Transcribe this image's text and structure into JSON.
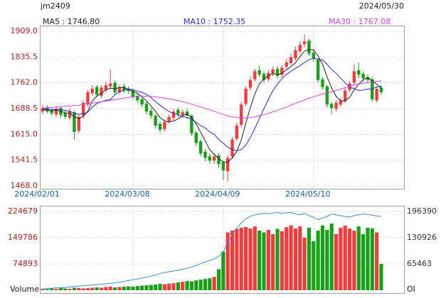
{
  "chart_data": [
    {
      "type": "candlestick",
      "title": "jm2409",
      "date": "2024/05/30",
      "categories": [
        "2024/02/01",
        null,
        null,
        null,
        null,
        null,
        null,
        null,
        null,
        null,
        null,
        null,
        null,
        null,
        null,
        null,
        null,
        null,
        null,
        null,
        "2024/03/08",
        null,
        null,
        null,
        null,
        null,
        null,
        null,
        null,
        null,
        null,
        null,
        null,
        null,
        null,
        null,
        null,
        null,
        null,
        null,
        "2024/04/09",
        null,
        null,
        null,
        null,
        null,
        null,
        null,
        null,
        null,
        null,
        null,
        null,
        null,
        null,
        null,
        null,
        null,
        null,
        null,
        "2024/05/10",
        null,
        null,
        null,
        null,
        null,
        null,
        null,
        null,
        null,
        null,
        null,
        null,
        null,
        null,
        null
      ],
      "open": [
        1680,
        1692,
        1684,
        1672,
        1690,
        1675,
        1662,
        1678,
        1625,
        1668,
        1700,
        1732,
        1750,
        1725,
        1742,
        1752,
        1762,
        1735,
        1752,
        1745,
        1740,
        1725,
        1715,
        1702,
        1682,
        1668,
        1645,
        1630,
        1652,
        1662,
        1685,
        1670,
        1680,
        1668,
        1620,
        1595,
        1565,
        1552,
        1540,
        1555,
        1535,
        1510,
        1552,
        1602,
        1642,
        1702,
        1748,
        1772,
        1798,
        1788,
        1772,
        1788,
        1802,
        1785,
        1808,
        1818,
        1832,
        1852,
        1872,
        1882,
        1848,
        1828,
        1772,
        1752,
        1702,
        1688,
        1700,
        1710,
        1742,
        1762,
        1798,
        1788,
        1778,
        1772,
        1712,
        1748
      ],
      "high": [
        1700,
        1698,
        1690,
        1695,
        1694,
        1682,
        1688,
        1682,
        1672,
        1712,
        1742,
        1755,
        1756,
        1756,
        1765,
        1800,
        1768,
        1756,
        1760,
        1752,
        1746,
        1732,
        1720,
        1708,
        1690,
        1672,
        1652,
        1658,
        1672,
        1688,
        1692,
        1686,
        1688,
        1672,
        1625,
        1600,
        1572,
        1560,
        1560,
        1562,
        1540,
        1555,
        1608,
        1648,
        1708,
        1752,
        1780,
        1802,
        1810,
        1795,
        1798,
        1808,
        1810,
        1812,
        1830,
        1845,
        1865,
        1880,
        1900,
        1888,
        1855,
        1832,
        1778,
        1756,
        1708,
        1712,
        1720,
        1748,
        1768,
        1815,
        1820,
        1795,
        1785,
        1778,
        1752,
        1755
      ],
      "low": [
        1672,
        1674,
        1668,
        1665,
        1662,
        1658,
        1655,
        1600,
        1618,
        1660,
        1694,
        1725,
        1720,
        1718,
        1736,
        1745,
        1728,
        1728,
        1732,
        1730,
        1715,
        1704,
        1692,
        1672,
        1660,
        1632,
        1620,
        1624,
        1645,
        1656,
        1665,
        1662,
        1660,
        1610,
        1582,
        1552,
        1538,
        1532,
        1530,
        1520,
        1485,
        1480,
        1545,
        1596,
        1635,
        1695,
        1740,
        1765,
        1778,
        1762,
        1765,
        1780,
        1775,
        1778,
        1800,
        1812,
        1825,
        1845,
        1862,
        1838,
        1822,
        1762,
        1742,
        1692,
        1672,
        1680,
        1694,
        1705,
        1735,
        1755,
        1775,
        1765,
        1760,
        1708,
        1706,
        1728
      ],
      "close": [
        1690,
        1680,
        1675,
        1688,
        1670,
        1665,
        1680,
        1622,
        1665,
        1705,
        1735,
        1745,
        1728,
        1748,
        1755,
        1760,
        1735,
        1748,
        1740,
        1738,
        1722,
        1712,
        1700,
        1680,
        1668,
        1640,
        1628,
        1650,
        1665,
        1680,
        1672,
        1678,
        1668,
        1618,
        1590,
        1560,
        1548,
        1540,
        1552,
        1530,
        1512,
        1548,
        1600,
        1640,
        1700,
        1745,
        1770,
        1795,
        1785,
        1770,
        1790,
        1800,
        1782,
        1805,
        1820,
        1835,
        1855,
        1870,
        1880,
        1845,
        1830,
        1770,
        1750,
        1700,
        1690,
        1705,
        1712,
        1740,
        1760,
        1795,
        1785,
        1775,
        1770,
        1715,
        1745,
        1735
      ],
      "up_color": "#f03c3c",
      "down_color": "#18a018",
      "ylim": [
        1468,
        1909
      ],
      "yticks": [
        {
          "value": 1468,
          "label": "1468.0"
        },
        {
          "value": 1541.5,
          "label": "1541.5"
        },
        {
          "value": 1615,
          "label": "1615.0"
        },
        {
          "value": 1688.5,
          "label": "1688.5"
        },
        {
          "value": 1762,
          "label": "1762.0"
        },
        {
          "value": 1835.5,
          "label": "1835.5"
        },
        {
          "value": 1909,
          "label": "1909.0"
        }
      ],
      "grid": true,
      "series": [
        {
          "name": "MA5",
          "label": "MA5 : 1746.80",
          "color": "#222222",
          "values": [
            1686,
            1684,
            1682,
            1684,
            1681,
            1676,
            1676,
            1665,
            1660,
            1666,
            1681,
            1711,
            1724,
            1732,
            1742,
            1747,
            1745,
            1749,
            1748,
            1744,
            1737,
            1732,
            1722,
            1710,
            1696,
            1680,
            1663,
            1653,
            1650,
            1653,
            1659,
            1669,
            1673,
            1663,
            1645,
            1621,
            1597,
            1571,
            1558,
            1546,
            1536,
            1536,
            1548,
            1566,
            1600,
            1647,
            1691,
            1730,
            1759,
            1773,
            1782,
            1788,
            1785,
            1789,
            1799,
            1808,
            1819,
            1837,
            1852,
            1857,
            1856,
            1839,
            1815,
            1779,
            1748,
            1723,
            1711,
            1709,
            1721,
            1742,
            1758,
            1771,
            1777,
            1768,
            1758,
            1746.8
          ]
        },
        {
          "name": "MA10",
          "label": "MA10 : 1752.35",
          "color": "#2b2bd0",
          "values": [
            1688,
            1687,
            1686,
            1686,
            1685,
            1683,
            1681,
            1675,
            1672,
            1674,
            1678,
            1693,
            1703,
            1708,
            1712,
            1714,
            1728,
            1737,
            1740,
            1745,
            1742,
            1738,
            1735,
            1729,
            1720,
            1708,
            1698,
            1688,
            1680,
            1675,
            1670,
            1666,
            1663,
            1658,
            1649,
            1640,
            1633,
            1622,
            1615,
            1600,
            1590,
            1578,
            1572,
            1568,
            1572,
            1584,
            1606,
            1632,
            1660,
            1688,
            1714,
            1740,
            1758,
            1774,
            1786,
            1795,
            1803,
            1811,
            1820,
            1828,
            1832,
            1829,
            1827,
            1815,
            1800,
            1789,
            1775,
            1762,
            1750,
            1745,
            1740,
            1741,
            1744,
            1745,
            1750,
            1752.35
          ]
        },
        {
          "name": "MA30",
          "label": "MA30 : 1767.08",
          "color": "#e040e0",
          "values": [
            1690,
            1691,
            1692,
            1693,
            1694,
            1695,
            1696,
            1697,
            1698,
            1700,
            1702,
            1704,
            1706,
            1708,
            1710,
            1712,
            1714,
            1716,
            1718,
            1720,
            1722,
            1723,
            1724,
            1724,
            1723,
            1722,
            1720,
            1718,
            1716,
            1714,
            1711,
            1708,
            1705,
            1701,
            1697,
            1693,
            1689,
            1685,
            1681,
            1676,
            1672,
            1668,
            1665,
            1663,
            1662,
            1662,
            1663,
            1665,
            1668,
            1671,
            1675,
            1679,
            1683,
            1688,
            1693,
            1698,
            1703,
            1708,
            1713,
            1718,
            1722,
            1726,
            1730,
            1733,
            1736,
            1740,
            1744,
            1748,
            1752,
            1756,
            1759,
            1761,
            1763,
            1765,
            1766,
            1767.08
          ]
        }
      ]
    },
    {
      "type": "volume",
      "y_label": "Volume",
      "y2_label": "OI",
      "values": [
        4000,
        3000,
        5000,
        4000,
        6000,
        5000,
        4000,
        7000,
        6000,
        5000,
        6000,
        7000,
        8000,
        7000,
        9000,
        10000,
        8000,
        9000,
        10000,
        11000,
        10000,
        12000,
        13000,
        14000,
        15000,
        16000,
        18000,
        17000,
        19000,
        20000,
        22000,
        24000,
        26000,
        25000,
        28000,
        30000,
        32000,
        34000,
        38000,
        60000,
        110000,
        165000,
        170000,
        175000,
        178000,
        180000,
        176000,
        182000,
        170000,
        165000,
        172000,
        160000,
        175000,
        168000,
        180000,
        185000,
        176000,
        182000,
        150000,
        178000,
        140000,
        170000,
        185000,
        172000,
        190000,
        160000,
        178000,
        184000,
        176000,
        170000,
        182000,
        160000,
        178000,
        176000,
        165000,
        75000
      ],
      "oi": [
        3000,
        4000,
        5000,
        6000,
        6000,
        7000,
        8000,
        9000,
        10000,
        11000,
        12000,
        13000,
        14000,
        15000,
        16000,
        17000,
        18000,
        20000,
        22000,
        24000,
        26000,
        28000,
        30000,
        32000,
        35000,
        38000,
        42000,
        44000,
        46000,
        48000,
        50000,
        52000,
        55000,
        58000,
        62000,
        66000,
        70000,
        74000,
        78000,
        84000,
        95000,
        120000,
        140000,
        155000,
        168000,
        178000,
        184000,
        188000,
        190000,
        192000,
        190000,
        192000,
        194000,
        191000,
        193000,
        194000,
        190000,
        188000,
        192000,
        186000,
        182000,
        176000,
        180000,
        184000,
        190000,
        188000,
        186000,
        184000,
        182000,
        186000,
        188000,
        190000,
        189000,
        187000,
        185000,
        184000
      ],
      "oi_color": "#3a8fd8",
      "ylim": [
        0,
        224679
      ],
      "yticks": [
        74893,
        149786,
        224679
      ],
      "y2lim": [
        0,
        196390
      ],
      "y2ticks": [
        65463,
        130926,
        196390
      ]
    }
  ]
}
